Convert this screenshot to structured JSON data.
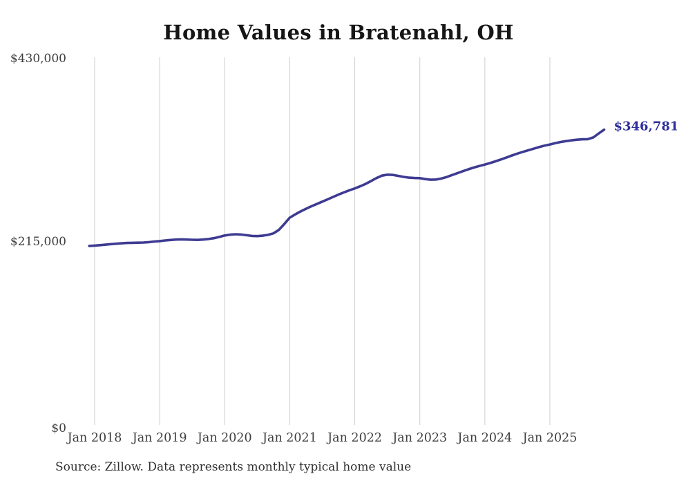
{
  "title": "Home Values in Bratenahl, OH",
  "source_note": "Source: Zillow. Data represents monthly typical home value",
  "end_label": "$346,781",
  "colors": {
    "line": "#3e3b92",
    "end_label": "#2e2d9c",
    "gridline": "#cdcdcd",
    "title_text": "#161616",
    "axis_text": "#3e3e3e",
    "background": "#ffffff"
  },
  "chart_data": {
    "type": "line",
    "title": "Home Values in Bratenahl, OH",
    "xlabel": "",
    "ylabel": "",
    "frequency": "monthly",
    "x_start": "2017-12",
    "x_end": "2025-11",
    "ylim": [
      0,
      430000
    ],
    "grid": "vertical-only",
    "legend": "none",
    "y_ticks": [
      {
        "label": "$430,000",
        "value": 430000
      },
      {
        "label": "$215,000",
        "value": 215000
      },
      {
        "label": "$0",
        "value": 0
      }
    ],
    "x_tick_labels": [
      "Jan 2018",
      "Jan 2019",
      "Jan 2020",
      "Jan 2021",
      "Jan 2022",
      "Jan 2023",
      "Jan 2024",
      "Jan 2025"
    ],
    "x_tick_month_indices": [
      1,
      13,
      25,
      37,
      49,
      61,
      73,
      85
    ],
    "end_label": "$346,781",
    "series": [
      {
        "name": "Monthly typical home value",
        "color": "#3e3b92",
        "values": [
          210200,
          210600,
          211100,
          211700,
          212300,
          212800,
          213300,
          213700,
          213900,
          214000,
          214200,
          214700,
          215300,
          215900,
          216600,
          217200,
          217700,
          217900,
          217700,
          217400,
          217300,
          217700,
          218300,
          219300,
          220800,
          222500,
          223400,
          223900,
          223600,
          222800,
          222000,
          221700,
          222200,
          223200,
          225000,
          229000,
          236000,
          243400,
          247200,
          250700,
          253900,
          256800,
          259500,
          262200,
          264900,
          267700,
          270500,
          273100,
          275500,
          277700,
          280200,
          283100,
          286400,
          289900,
          292700,
          293900,
          293600,
          292500,
          291300,
          290400,
          290000,
          289800,
          288700,
          287900,
          288200,
          289400,
          291200,
          293500,
          295800,
          298100,
          300300,
          302300,
          304100,
          305800,
          307600,
          309600,
          311800,
          314100,
          316400,
          318600,
          320600,
          322500,
          324400,
          326200,
          327900,
          329300,
          330900,
          332200,
          333300,
          334200,
          334900,
          335400,
          335600,
          337600,
          342200,
          346781
        ]
      }
    ]
  }
}
